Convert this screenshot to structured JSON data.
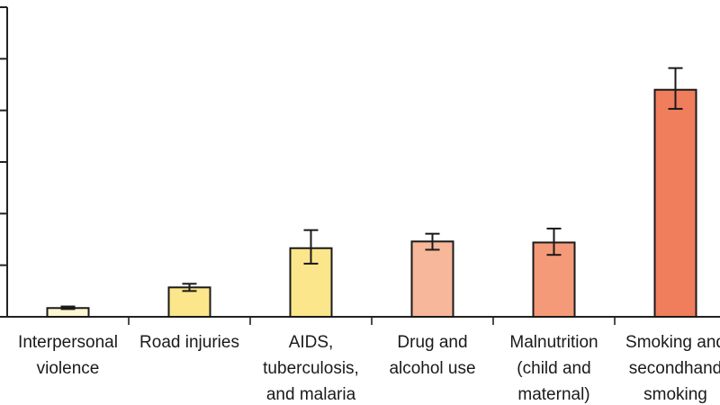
{
  "chart_data": {
    "type": "bar",
    "title": "",
    "xlabel": "",
    "ylabel": "",
    "ylim": [
      0,
      6
    ],
    "y_ticks": [
      0,
      1,
      2,
      3,
      4,
      5,
      6
    ],
    "show_tick_labels": false,
    "grid": false,
    "categories": [
      {
        "lines": [
          "Interpersonal",
          "violence"
        ]
      },
      {
        "lines": [
          "Road injuries"
        ]
      },
      {
        "lines": [
          "AIDS,",
          "tuberculosis,",
          "and malaria"
        ]
      },
      {
        "lines": [
          "Drug and",
          "alcohol use"
        ]
      },
      {
        "lines": [
          "Malnutrition",
          "(child and",
          "maternal)"
        ]
      },
      {
        "lines": [
          "Smoking and",
          "secondhand",
          "smoking"
        ]
      }
    ],
    "values": [
      0.17,
      0.57,
      1.33,
      1.46,
      1.44,
      4.4
    ],
    "error_low": [
      0.15,
      0.5,
      1.03,
      1.3,
      1.2,
      4.03
    ],
    "error_high": [
      0.2,
      0.64,
      1.68,
      1.61,
      1.71,
      4.82
    ],
    "colors": [
      "#fdf6d2",
      "#fbe68c",
      "#fbe68c",
      "#f7b79a",
      "#f59a78",
      "#f07d5c"
    ]
  }
}
